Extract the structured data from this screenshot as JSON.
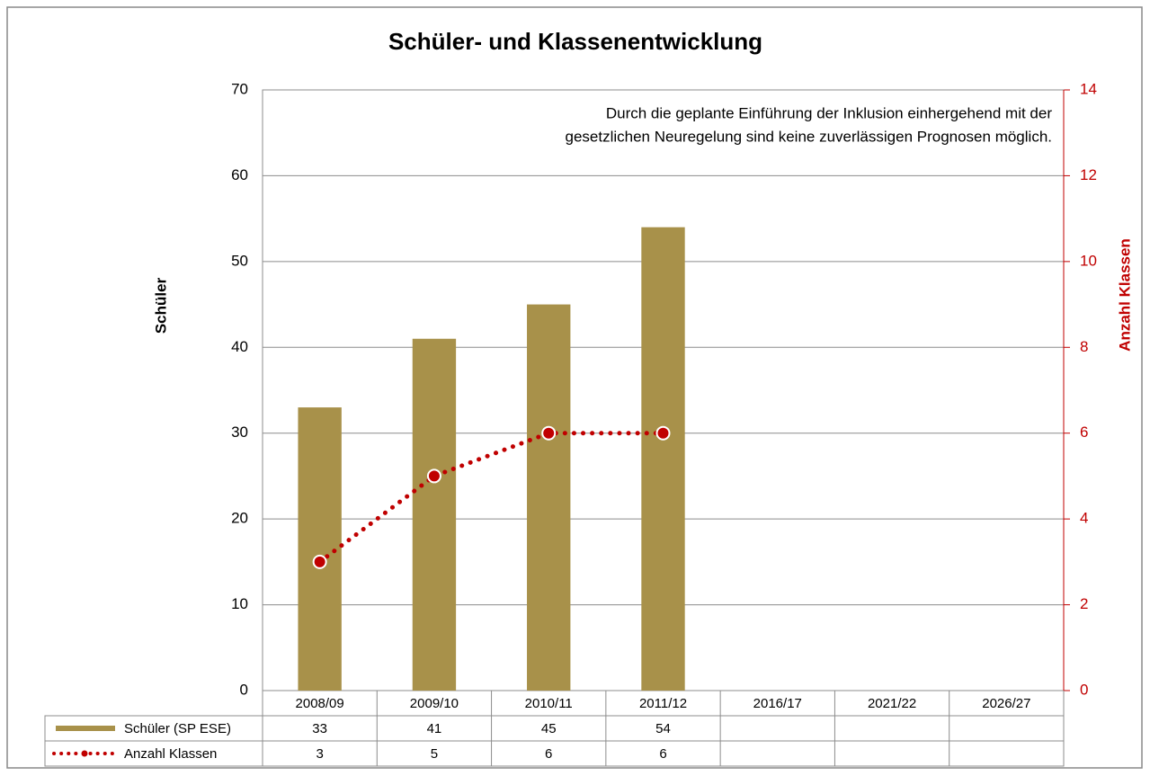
{
  "chart_data": {
    "type": "bar",
    "title": "Schüler- und Klassenentwicklung",
    "y_label": "Schüler",
    "y2_label": "Anzahl Klassen",
    "annotation": [
      "Durch die geplante Einführung der Inklusion einhergehend mit der",
      "gesetzlichen Neuregelung sind keine zuverlässigen Prognosen möglich."
    ],
    "categories": [
      "2008/09",
      "2009/10",
      "2010/11",
      "2011/12",
      "2016/17",
      "2021/22",
      "2026/27"
    ],
    "series": [
      {
        "name": "Schüler (SP ESE)",
        "type": "bar",
        "color": "#a8914a",
        "values": [
          33,
          41,
          45,
          54,
          null,
          null,
          null
        ]
      },
      {
        "name": "Anzahl Klassen",
        "type": "line",
        "axis": "y2",
        "color": "#c00000",
        "values": [
          3,
          5,
          6,
          6,
          null,
          null,
          null
        ]
      }
    ],
    "ylim": [
      0,
      70
    ],
    "yticks": [
      0,
      10,
      20,
      30,
      40,
      50,
      60,
      70
    ],
    "y2lim": [
      0,
      14
    ],
    "y2ticks": [
      0,
      2,
      4,
      6,
      8,
      10,
      12,
      14
    ],
    "y2_color": "#c00000",
    "grid": true,
    "data_table": true
  }
}
